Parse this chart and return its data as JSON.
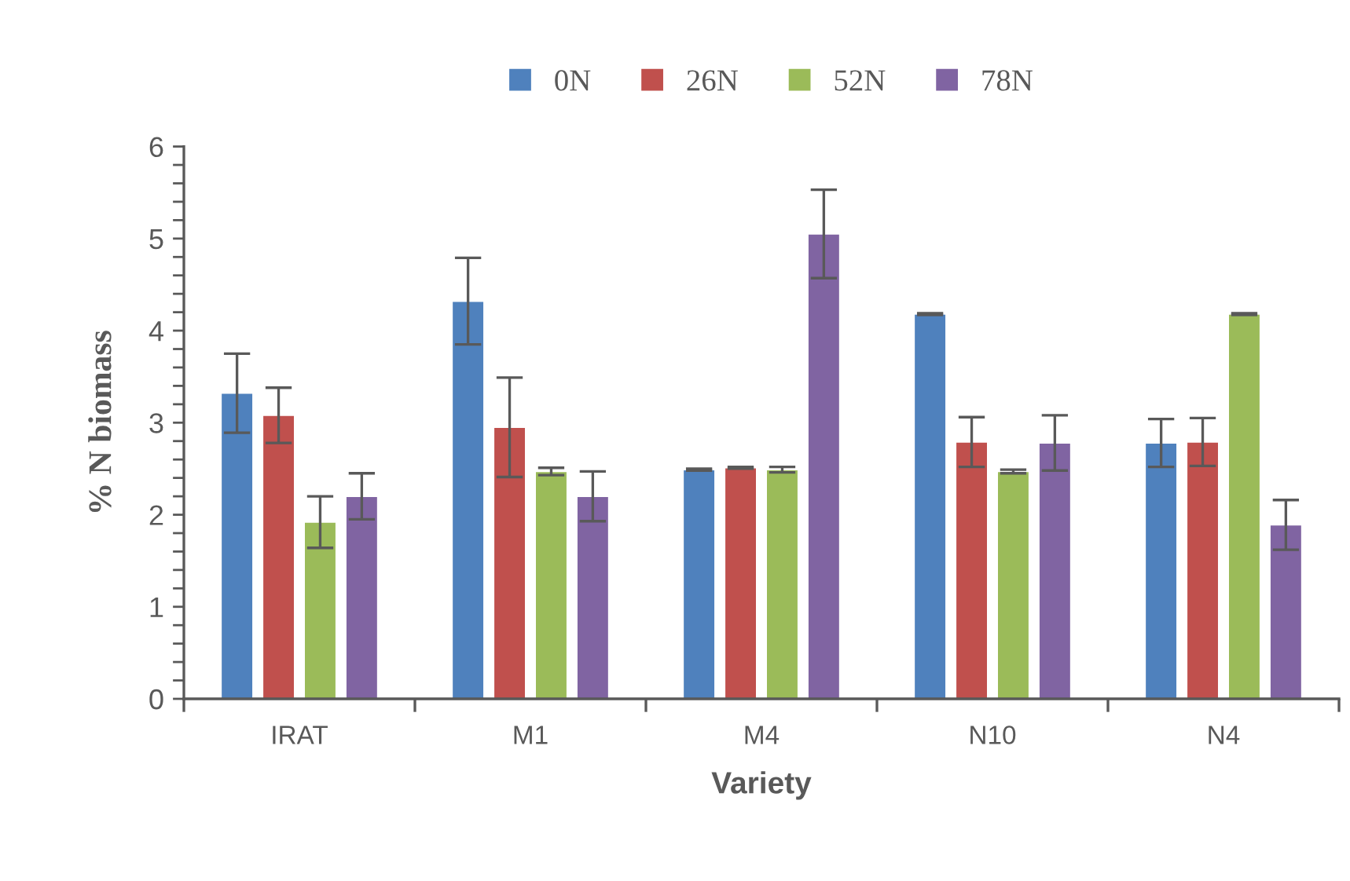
{
  "chart_data": {
    "type": "bar",
    "xlabel": "Variety",
    "ylabel": "% N biomass",
    "categories": [
      "IRAT",
      "M1",
      "M4",
      "N10",
      "N4"
    ],
    "series": [
      {
        "name": "0N",
        "color": "#4f81bd",
        "values": [
          3.32,
          4.32,
          2.49,
          4.18,
          2.78
        ],
        "errors": [
          0.43,
          0.47,
          0.01,
          0.01,
          0.26
        ]
      },
      {
        "name": "26N",
        "color": "#c0504d",
        "values": [
          3.08,
          2.95,
          2.51,
          2.79,
          2.79
        ],
        "errors": [
          0.3,
          0.54,
          0.01,
          0.27,
          0.26
        ]
      },
      {
        "name": "52N",
        "color": "#9bbb59",
        "values": [
          1.92,
          2.47,
          2.49,
          2.47,
          4.18
        ],
        "errors": [
          0.28,
          0.04,
          0.03,
          0.02,
          0.01
        ]
      },
      {
        "name": "78N",
        "color": "#8064a2",
        "values": [
          2.2,
          2.2,
          5.05,
          2.78,
          1.89
        ],
        "errors": [
          0.25,
          0.27,
          0.48,
          0.3,
          0.27
        ]
      }
    ],
    "ylim": [
      0,
      6
    ],
    "yticks": [
      0,
      {
        "value": 0.2,
        "label": null
      },
      {
        "value": 0.4,
        "label": null
      },
      {
        "value": 0.6,
        "label": null
      },
      {
        "value": 0.8,
        "label": null
      },
      1,
      {
        "value": 1.2,
        "label": null
      },
      {
        "value": 1.4,
        "label": null
      },
      {
        "value": 1.6,
        "label": null
      },
      {
        "value": 1.8,
        "label": null
      },
      2,
      {
        "value": 2.2,
        "label": null
      },
      {
        "value": 2.4,
        "label": null
      },
      {
        "value": 2.6,
        "label": null
      },
      {
        "value": 2.8,
        "label": null
      },
      3,
      {
        "value": 3.2,
        "label": null
      },
      {
        "value": 3.4,
        "label": null
      },
      {
        "value": 3.6,
        "label": null
      },
      {
        "value": 3.8,
        "label": null
      },
      4,
      {
        "value": 4.2,
        "label": null
      },
      {
        "value": 4.4,
        "label": null
      },
      {
        "value": 4.6,
        "label": null
      },
      {
        "value": 4.8,
        "label": null
      },
      5,
      {
        "value": 5.2,
        "label": null
      },
      {
        "value": 5.4,
        "label": null
      },
      {
        "value": 5.6,
        "label": null
      },
      {
        "value": 5.8,
        "label": null
      },
      6
    ],
    "grid": false,
    "legend": "top"
  }
}
